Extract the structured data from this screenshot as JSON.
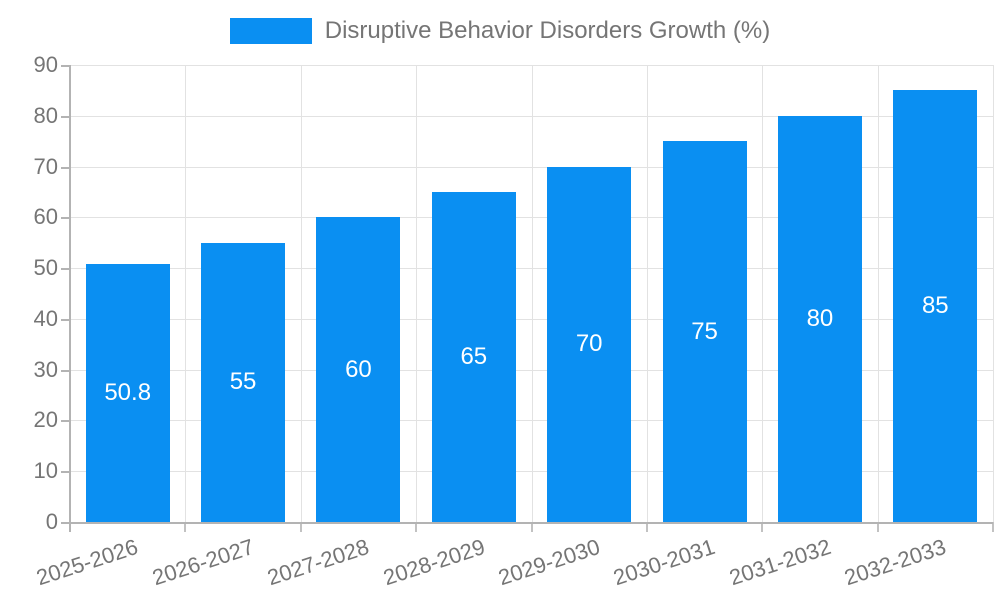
{
  "legend": {
    "label": "Disruptive Behavior Disorders Growth (%)"
  },
  "chart_data": {
    "type": "bar",
    "title": "Disruptive Behavior Disorders Growth (%)",
    "categories": [
      "2025-2026",
      "2026-2027",
      "2027-2028",
      "2028-2029",
      "2029-2030",
      "2030-2031",
      "2031-2032",
      "2032-2033"
    ],
    "values": [
      50.8,
      55,
      60,
      65,
      70,
      75,
      80,
      85
    ],
    "bar_labels": [
      "50.8",
      "55",
      "60",
      "65",
      "70",
      "75",
      "80",
      "85"
    ],
    "xlabel": "",
    "ylabel": "",
    "ylim": [
      0,
      90
    ],
    "yticks": [
      0,
      10,
      20,
      30,
      40,
      50,
      60,
      70,
      80,
      90
    ],
    "grid": true,
    "legend_position": "top-center",
    "x_label_rotation_deg": -18,
    "colors": {
      "bar": "#0a8ff2",
      "value_label": "#ffffff",
      "axis_text": "#757575",
      "legend_text": "#757575",
      "grid_line": "#e2e2e2",
      "axis_line": "#b3b3b3",
      "background": "#ffffff"
    }
  }
}
